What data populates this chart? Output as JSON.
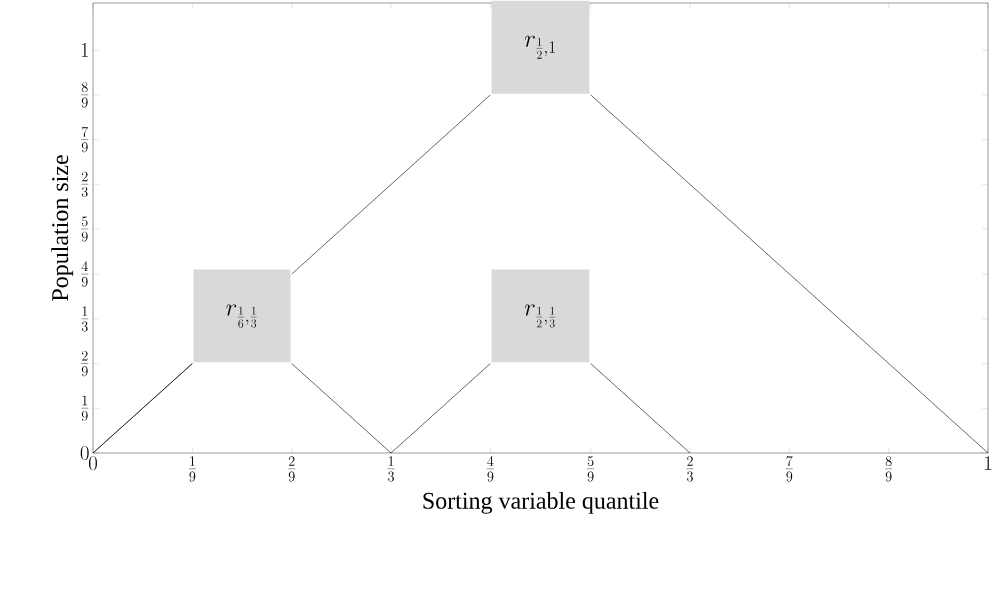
{
  "chart_data": {
    "type": "line",
    "xlabel": "Sorting variable quantile",
    "ylabel": "Population size",
    "xlim": [
      0,
      1
    ],
    "ylim": [
      0,
      1.117
    ],
    "xticks": [
      {
        "value": 0,
        "label": "0"
      },
      {
        "value": 0.111,
        "label": "\\frac{1}{9}"
      },
      {
        "value": 0.222,
        "label": "\\frac{2}{9}"
      },
      {
        "value": 0.333,
        "label": "\\frac{1}{3}"
      },
      {
        "value": 0.444,
        "label": "\\frac{4}{9}"
      },
      {
        "value": 0.556,
        "label": "\\frac{5}{9}"
      },
      {
        "value": 0.667,
        "label": "\\frac{2}{3}"
      },
      {
        "value": 0.778,
        "label": "\\frac{7}{9}"
      },
      {
        "value": 0.889,
        "label": "\\frac{8}{9}"
      },
      {
        "value": 1,
        "label": "1"
      }
    ],
    "yticks": [
      {
        "value": 0,
        "label": "0"
      },
      {
        "value": 0.111,
        "label": "\\frac{1}{9}"
      },
      {
        "value": 0.222,
        "label": "\\frac{2}{9}"
      },
      {
        "value": 0.333,
        "label": "\\frac{1}{3}"
      },
      {
        "value": 0.444,
        "label": "\\frac{4}{9}"
      },
      {
        "value": 0.556,
        "label": "\\frac{5}{9}"
      },
      {
        "value": 0.667,
        "label": "\\frac{2}{3}"
      },
      {
        "value": 0.778,
        "label": "\\frac{7}{9}"
      },
      {
        "value": 0.889,
        "label": "\\frac{8}{9}"
      },
      {
        "value": 1,
        "label": "1"
      }
    ],
    "series": [
      {
        "color": "#000000",
        "x": [
          0,
          0.111,
          0.167,
          0.222,
          0.444,
          0.5,
          0.556,
          1
        ],
        "values": [
          0,
          0.222,
          null,
          0.444,
          0.889,
          null,
          0.889,
          0
        ]
      },
      {
        "color": "#000000",
        "x": [
          0,
          0.111,
          0.167,
          0.222,
          0.333
        ],
        "values": [
          0,
          0.222,
          null,
          0.222,
          0
        ]
      },
      {
        "color": "#000000",
        "x": [
          0.333,
          0.444,
          0.5,
          0.556,
          0.667
        ],
        "values": [
          0,
          0.222,
          null,
          0.222,
          0
        ]
      }
    ],
    "annotations": [
      "r_{\\frac{1}{2},1}",
      "r_{\\frac{1}{6},\\frac{1}{3}}",
      "r_{\\frac{1}{2},\\frac{1}{3}}"
    ],
    "marker": "none",
    "line_style": "solid",
    "grid": false
  }
}
